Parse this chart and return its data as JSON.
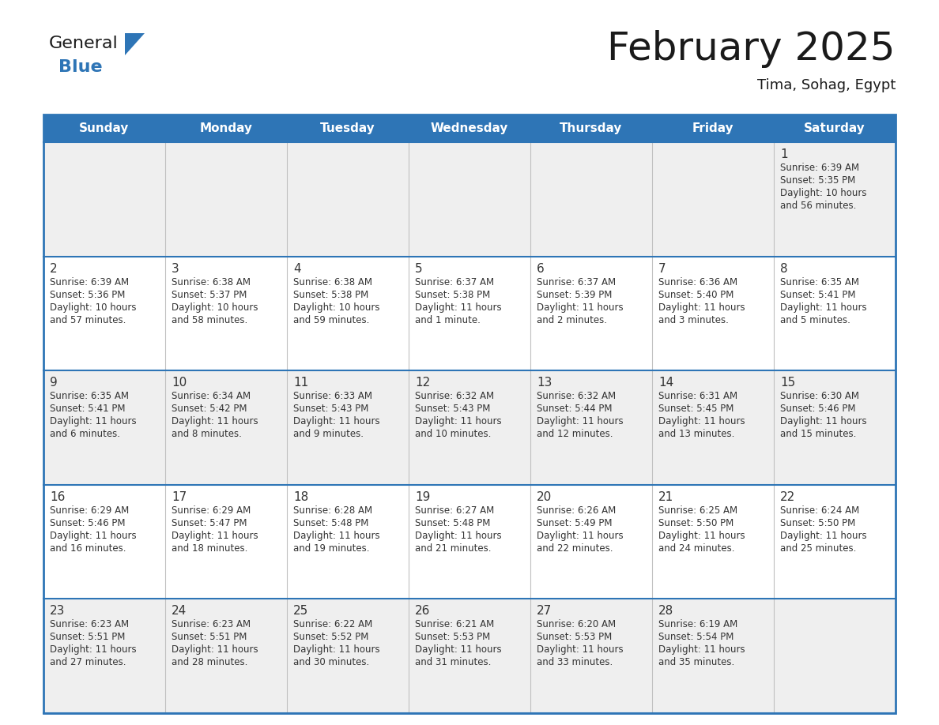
{
  "title": "February 2025",
  "subtitle": "Tima, Sohag, Egypt",
  "days_of_week": [
    "Sunday",
    "Monday",
    "Tuesday",
    "Wednesday",
    "Thursday",
    "Friday",
    "Saturday"
  ],
  "header_bg": "#2E75B6",
  "header_text": "#FFFFFF",
  "row0_bg": "#EFEFEF",
  "odd_row_bg": "#EFEFEF",
  "even_row_bg": "#FFFFFF",
  "border_color": "#2E75B6",
  "sep_color": "#C0C0C0",
  "text_color": "#333333",
  "title_color": "#1a1a1a",
  "subtitle_color": "#1a1a1a",
  "calendar_data": [
    {
      "day": 1,
      "col": 6,
      "row": 0,
      "sunrise": "6:39 AM",
      "sunset": "5:35 PM",
      "daylight_line1": "Daylight: 10 hours",
      "daylight_line2": "and 56 minutes."
    },
    {
      "day": 2,
      "col": 0,
      "row": 1,
      "sunrise": "6:39 AM",
      "sunset": "5:36 PM",
      "daylight_line1": "Daylight: 10 hours",
      "daylight_line2": "and 57 minutes."
    },
    {
      "day": 3,
      "col": 1,
      "row": 1,
      "sunrise": "6:38 AM",
      "sunset": "5:37 PM",
      "daylight_line1": "Daylight: 10 hours",
      "daylight_line2": "and 58 minutes."
    },
    {
      "day": 4,
      "col": 2,
      "row": 1,
      "sunrise": "6:38 AM",
      "sunset": "5:38 PM",
      "daylight_line1": "Daylight: 10 hours",
      "daylight_line2": "and 59 minutes."
    },
    {
      "day": 5,
      "col": 3,
      "row": 1,
      "sunrise": "6:37 AM",
      "sunset": "5:38 PM",
      "daylight_line1": "Daylight: 11 hours",
      "daylight_line2": "and 1 minute."
    },
    {
      "day": 6,
      "col": 4,
      "row": 1,
      "sunrise": "6:37 AM",
      "sunset": "5:39 PM",
      "daylight_line1": "Daylight: 11 hours",
      "daylight_line2": "and 2 minutes."
    },
    {
      "day": 7,
      "col": 5,
      "row": 1,
      "sunrise": "6:36 AM",
      "sunset": "5:40 PM",
      "daylight_line1": "Daylight: 11 hours",
      "daylight_line2": "and 3 minutes."
    },
    {
      "day": 8,
      "col": 6,
      "row": 1,
      "sunrise": "6:35 AM",
      "sunset": "5:41 PM",
      "daylight_line1": "Daylight: 11 hours",
      "daylight_line2": "and 5 minutes."
    },
    {
      "day": 9,
      "col": 0,
      "row": 2,
      "sunrise": "6:35 AM",
      "sunset": "5:41 PM",
      "daylight_line1": "Daylight: 11 hours",
      "daylight_line2": "and 6 minutes."
    },
    {
      "day": 10,
      "col": 1,
      "row": 2,
      "sunrise": "6:34 AM",
      "sunset": "5:42 PM",
      "daylight_line1": "Daylight: 11 hours",
      "daylight_line2": "and 8 minutes."
    },
    {
      "day": 11,
      "col": 2,
      "row": 2,
      "sunrise": "6:33 AM",
      "sunset": "5:43 PM",
      "daylight_line1": "Daylight: 11 hours",
      "daylight_line2": "and 9 minutes."
    },
    {
      "day": 12,
      "col": 3,
      "row": 2,
      "sunrise": "6:32 AM",
      "sunset": "5:43 PM",
      "daylight_line1": "Daylight: 11 hours",
      "daylight_line2": "and 10 minutes."
    },
    {
      "day": 13,
      "col": 4,
      "row": 2,
      "sunrise": "6:32 AM",
      "sunset": "5:44 PM",
      "daylight_line1": "Daylight: 11 hours",
      "daylight_line2": "and 12 minutes."
    },
    {
      "day": 14,
      "col": 5,
      "row": 2,
      "sunrise": "6:31 AM",
      "sunset": "5:45 PM",
      "daylight_line1": "Daylight: 11 hours",
      "daylight_line2": "and 13 minutes."
    },
    {
      "day": 15,
      "col": 6,
      "row": 2,
      "sunrise": "6:30 AM",
      "sunset": "5:46 PM",
      "daylight_line1": "Daylight: 11 hours",
      "daylight_line2": "and 15 minutes."
    },
    {
      "day": 16,
      "col": 0,
      "row": 3,
      "sunrise": "6:29 AM",
      "sunset": "5:46 PM",
      "daylight_line1": "Daylight: 11 hours",
      "daylight_line2": "and 16 minutes."
    },
    {
      "day": 17,
      "col": 1,
      "row": 3,
      "sunrise": "6:29 AM",
      "sunset": "5:47 PM",
      "daylight_line1": "Daylight: 11 hours",
      "daylight_line2": "and 18 minutes."
    },
    {
      "day": 18,
      "col": 2,
      "row": 3,
      "sunrise": "6:28 AM",
      "sunset": "5:48 PM",
      "daylight_line1": "Daylight: 11 hours",
      "daylight_line2": "and 19 minutes."
    },
    {
      "day": 19,
      "col": 3,
      "row": 3,
      "sunrise": "6:27 AM",
      "sunset": "5:48 PM",
      "daylight_line1": "Daylight: 11 hours",
      "daylight_line2": "and 21 minutes."
    },
    {
      "day": 20,
      "col": 4,
      "row": 3,
      "sunrise": "6:26 AM",
      "sunset": "5:49 PM",
      "daylight_line1": "Daylight: 11 hours",
      "daylight_line2": "and 22 minutes."
    },
    {
      "day": 21,
      "col": 5,
      "row": 3,
      "sunrise": "6:25 AM",
      "sunset": "5:50 PM",
      "daylight_line1": "Daylight: 11 hours",
      "daylight_line2": "and 24 minutes."
    },
    {
      "day": 22,
      "col": 6,
      "row": 3,
      "sunrise": "6:24 AM",
      "sunset": "5:50 PM",
      "daylight_line1": "Daylight: 11 hours",
      "daylight_line2": "and 25 minutes."
    },
    {
      "day": 23,
      "col": 0,
      "row": 4,
      "sunrise": "6:23 AM",
      "sunset": "5:51 PM",
      "daylight_line1": "Daylight: 11 hours",
      "daylight_line2": "and 27 minutes."
    },
    {
      "day": 24,
      "col": 1,
      "row": 4,
      "sunrise": "6:23 AM",
      "sunset": "5:51 PM",
      "daylight_line1": "Daylight: 11 hours",
      "daylight_line2": "and 28 minutes."
    },
    {
      "day": 25,
      "col": 2,
      "row": 4,
      "sunrise": "6:22 AM",
      "sunset": "5:52 PM",
      "daylight_line1": "Daylight: 11 hours",
      "daylight_line2": "and 30 minutes."
    },
    {
      "day": 26,
      "col": 3,
      "row": 4,
      "sunrise": "6:21 AM",
      "sunset": "5:53 PM",
      "daylight_line1": "Daylight: 11 hours",
      "daylight_line2": "and 31 minutes."
    },
    {
      "day": 27,
      "col": 4,
      "row": 4,
      "sunrise": "6:20 AM",
      "sunset": "5:53 PM",
      "daylight_line1": "Daylight: 11 hours",
      "daylight_line2": "and 33 minutes."
    },
    {
      "day": 28,
      "col": 5,
      "row": 4,
      "sunrise": "6:19 AM",
      "sunset": "5:54 PM",
      "daylight_line1": "Daylight: 11 hours",
      "daylight_line2": "and 35 minutes."
    }
  ],
  "num_rows": 5,
  "logo_text_general": "General",
  "logo_text_blue": "Blue",
  "logo_triangle_color": "#2E75B6",
  "title_fontsize": 36,
  "subtitle_fontsize": 13,
  "header_fontsize": 11,
  "day_fontsize": 11,
  "info_fontsize": 8.5
}
